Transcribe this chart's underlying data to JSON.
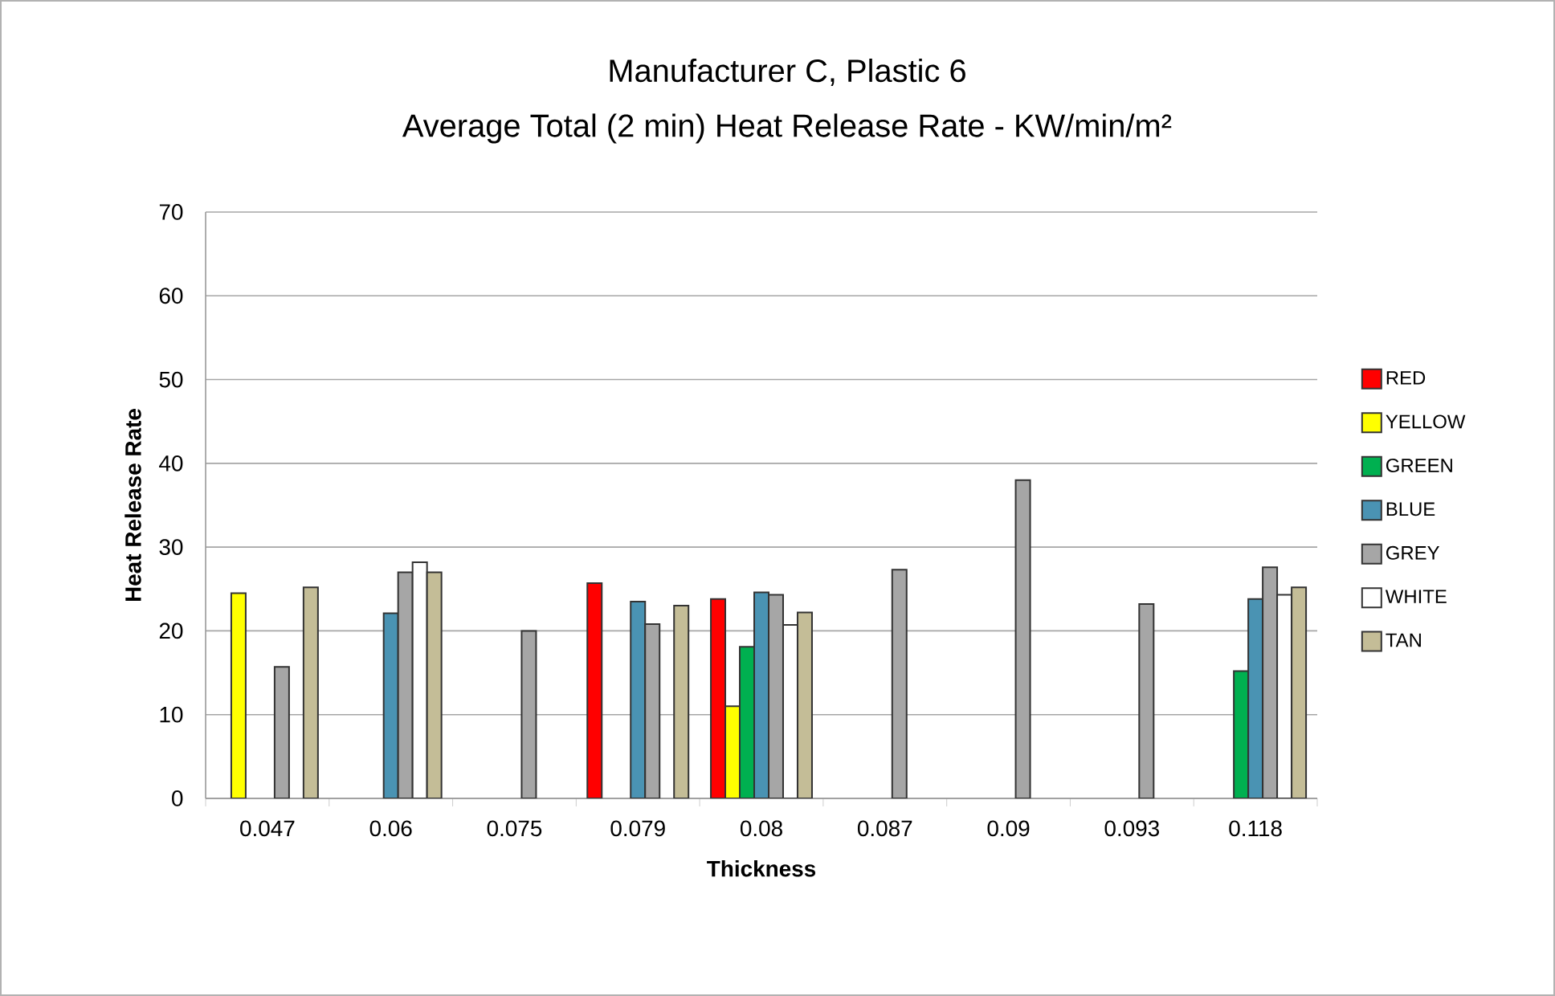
{
  "chart_data": {
    "type": "bar",
    "title": "Manufacturer C, Plastic 6",
    "subtitle": "Average Total (2 min) Heat Release Rate - KW/min/m²",
    "xlabel": "Thickness",
    "ylabel": "Heat Release Rate",
    "categories": [
      "0.047",
      "0.06",
      "0.075",
      "0.079",
      "0.08",
      "0.087",
      "0.09",
      "0.093",
      "0.118"
    ],
    "series": [
      {
        "name": "RED",
        "color": "#ff0000",
        "values": [
          null,
          null,
          null,
          25.7,
          23.8,
          null,
          null,
          null,
          null
        ]
      },
      {
        "name": "YELLOW",
        "color": "#ffff00",
        "values": [
          24.5,
          null,
          null,
          null,
          11,
          null,
          null,
          null,
          null
        ]
      },
      {
        "name": "GREEN",
        "color": "#00b050",
        "values": [
          null,
          null,
          null,
          null,
          18.1,
          null,
          null,
          null,
          15.2
        ]
      },
      {
        "name": "BLUE",
        "color": "#4a93b3",
        "values": [
          null,
          22.1,
          null,
          23.5,
          24.6,
          null,
          null,
          null,
          23.8
        ]
      },
      {
        "name": "GREY",
        "color": "#a6a6a6",
        "values": [
          15.7,
          27,
          20,
          20.8,
          24.3,
          27.3,
          38,
          23.2,
          27.6
        ]
      },
      {
        "name": "WHITE",
        "color": "#ffffff",
        "values": [
          null,
          28.2,
          null,
          null,
          20.7,
          null,
          null,
          null,
          24.3
        ]
      },
      {
        "name": "TAN",
        "color": "#c4bd97",
        "values": [
          25.2,
          27,
          null,
          23,
          22.2,
          null,
          null,
          null,
          25.2
        ]
      }
    ],
    "ylim": [
      0,
      70
    ],
    "yticks": [
      0,
      10,
      20,
      30,
      40,
      50,
      60,
      70
    ],
    "grid": "y",
    "legend": "right"
  }
}
